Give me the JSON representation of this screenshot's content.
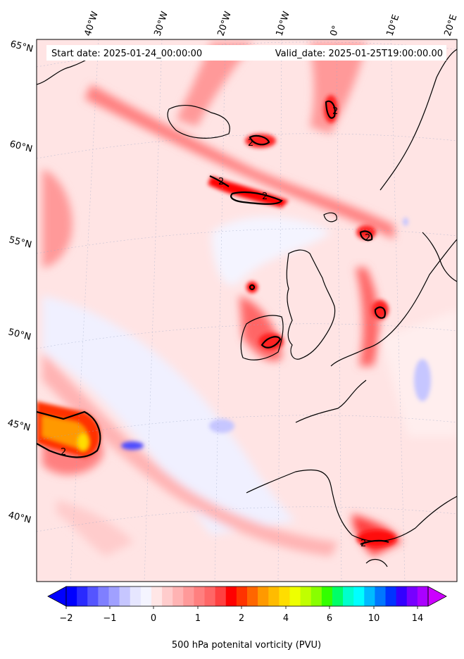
{
  "header": {
    "start_date": "Start date: 2025-01-24_00:00:00",
    "valid_date": "Valid_date: 2025-01-25T19:00:00.00"
  },
  "map": {
    "longitude_labels": [
      "40°W",
      "30°W",
      "20°W",
      "10°W",
      "0°",
      "10°E",
      "20°E"
    ],
    "latitude_labels": [
      "65°N",
      "60°N",
      "55°N",
      "50°N",
      "45°N",
      "40°N"
    ],
    "contour_label": "2"
  },
  "colorbar": {
    "ticks": [
      "−2",
      "−1",
      "0",
      "1",
      "2",
      "4",
      "6",
      "10",
      "14"
    ],
    "colors": [
      "#0000ff",
      "#2a2aff",
      "#5555ff",
      "#7f7fff",
      "#a0a0ff",
      "#c6c6ff",
      "#e6e6ff",
      "#f4f4ff",
      "#ffe6e6",
      "#ffcccc",
      "#ffb3b3",
      "#ff9999",
      "#ff7f7f",
      "#ff6666",
      "#ff4040",
      "#ff0000",
      "#ff3300",
      "#ff6600",
      "#ff9900",
      "#ffbb00",
      "#ffdd00",
      "#eeff00",
      "#c0ff00",
      "#88ff00",
      "#33ff00",
      "#00ff66",
      "#00ffcc",
      "#00ffff",
      "#00bbff",
      "#0077ff",
      "#0033ff",
      "#3300ff",
      "#7700ff",
      "#aa00ff"
    ],
    "extend_low_color": "#0000ff",
    "extend_high_color": "#cc00ff",
    "label": "500 hPa potenital vorticity (PVU)"
  }
}
